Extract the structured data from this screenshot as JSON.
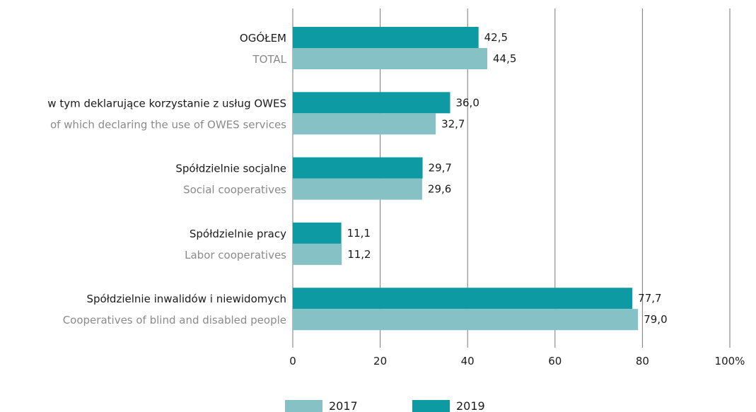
{
  "chart_data": {
    "type": "bar",
    "orientation": "horizontal",
    "categories": [
      {
        "label_pl": "OGÓŁEM",
        "label_en": "TOTAL"
      },
      {
        "label_pl": "w tym deklarujące korzystanie z usług OWES",
        "label_en": "of which declaring the use of OWES services"
      },
      {
        "label_pl": "Spółdzielnie socjalne",
        "label_en": "Social cooperatives"
      },
      {
        "label_pl": "Spółdzielnie pracy",
        "label_en": "Labor cooperatives"
      },
      {
        "label_pl": "Spółdzielnie inwalidów i niewidomych",
        "label_en": "Cooperatives of blind and disabled people"
      }
    ],
    "series": [
      {
        "name": "2019",
        "color": "#0e9aa2",
        "values": [
          42.5,
          36.0,
          29.7,
          11.1,
          77.7
        ],
        "labels": [
          "42,5",
          "36,0",
          "29,7",
          "11,1",
          "77,7"
        ]
      },
      {
        "name": "2017",
        "color": "#86c1c6",
        "values": [
          44.5,
          32.7,
          29.6,
          11.2,
          79.0
        ],
        "labels": [
          "44,5",
          "32,7",
          "29,6",
          "11,2",
          "79,0"
        ]
      }
    ],
    "xlim": [
      0,
      100
    ],
    "xticks": [
      0,
      20,
      40,
      60,
      80,
      100
    ],
    "xtick_labels": [
      "0",
      "20",
      "40",
      "60",
      "80",
      "100%"
    ],
    "grid": "vertical",
    "legend": {
      "placement": "bottom",
      "items": [
        {
          "name": "2017",
          "color": "#86c1c6"
        },
        {
          "name": "2019",
          "color": "#0e9aa2"
        }
      ]
    }
  }
}
